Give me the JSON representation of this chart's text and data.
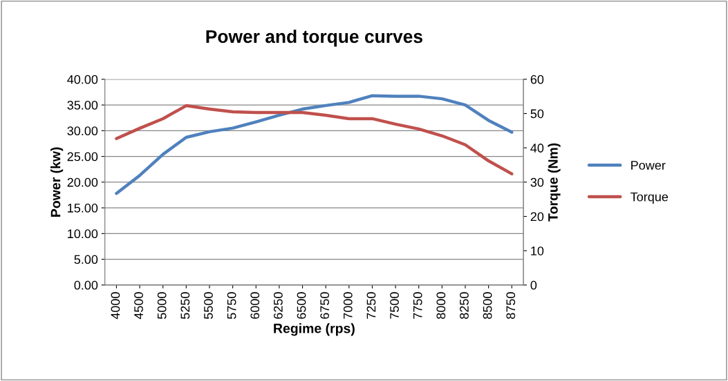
{
  "chart_data": {
    "type": "line",
    "title": "Power and torque curves",
    "xlabel": "Regime (rps)",
    "ylabel": "Power (kw)",
    "y2label": "Torque (Nm)",
    "categories": [
      "4000",
      "4500",
      "5000",
      "5250",
      "5500",
      "5750",
      "6000",
      "6250",
      "6500",
      "6750",
      "7000",
      "7250",
      "7500",
      "7750",
      "8000",
      "8250",
      "8500",
      "8750"
    ],
    "series": [
      {
        "name": "Power",
        "color": "#4f81bd",
        "values": [
          17.8,
          21.3,
          25.4,
          28.7,
          29.8,
          30.5,
          31.7,
          33.0,
          34.2,
          34.9,
          35.5,
          36.8,
          36.7,
          36.7,
          36.2,
          35.0,
          32.0,
          29.7
        ]
      },
      {
        "name": "Torque",
        "color": "#c0504d",
        "axis": "y2",
        "values": [
          42.7,
          45.7,
          48.5,
          52.3,
          51.3,
          50.5,
          50.3,
          50.3,
          50.3,
          49.5,
          48.5,
          48.5,
          46.9,
          45.5,
          43.5,
          40.9,
          36.2,
          32.4
        ]
      }
    ],
    "ylim": [
      0,
      40
    ],
    "yticks": [
      {
        "value": 0,
        "label": "0.00"
      },
      {
        "value": 5,
        "label": "5.00"
      },
      {
        "value": 10,
        "label": "10.00"
      },
      {
        "value": 15,
        "label": "15.00"
      },
      {
        "value": 20,
        "label": "20.00"
      },
      {
        "value": 25,
        "label": "25.00"
      },
      {
        "value": 30,
        "label": "30.00"
      },
      {
        "value": 35,
        "label": "35.00"
      },
      {
        "value": 40,
        "label": "40.00"
      }
    ],
    "y2lim": [
      0,
      60
    ],
    "y2ticks": [
      0,
      10,
      20,
      30,
      40,
      50,
      60
    ],
    "grid": "y",
    "legend": "right",
    "marker": "none",
    "line_style": "solid"
  }
}
